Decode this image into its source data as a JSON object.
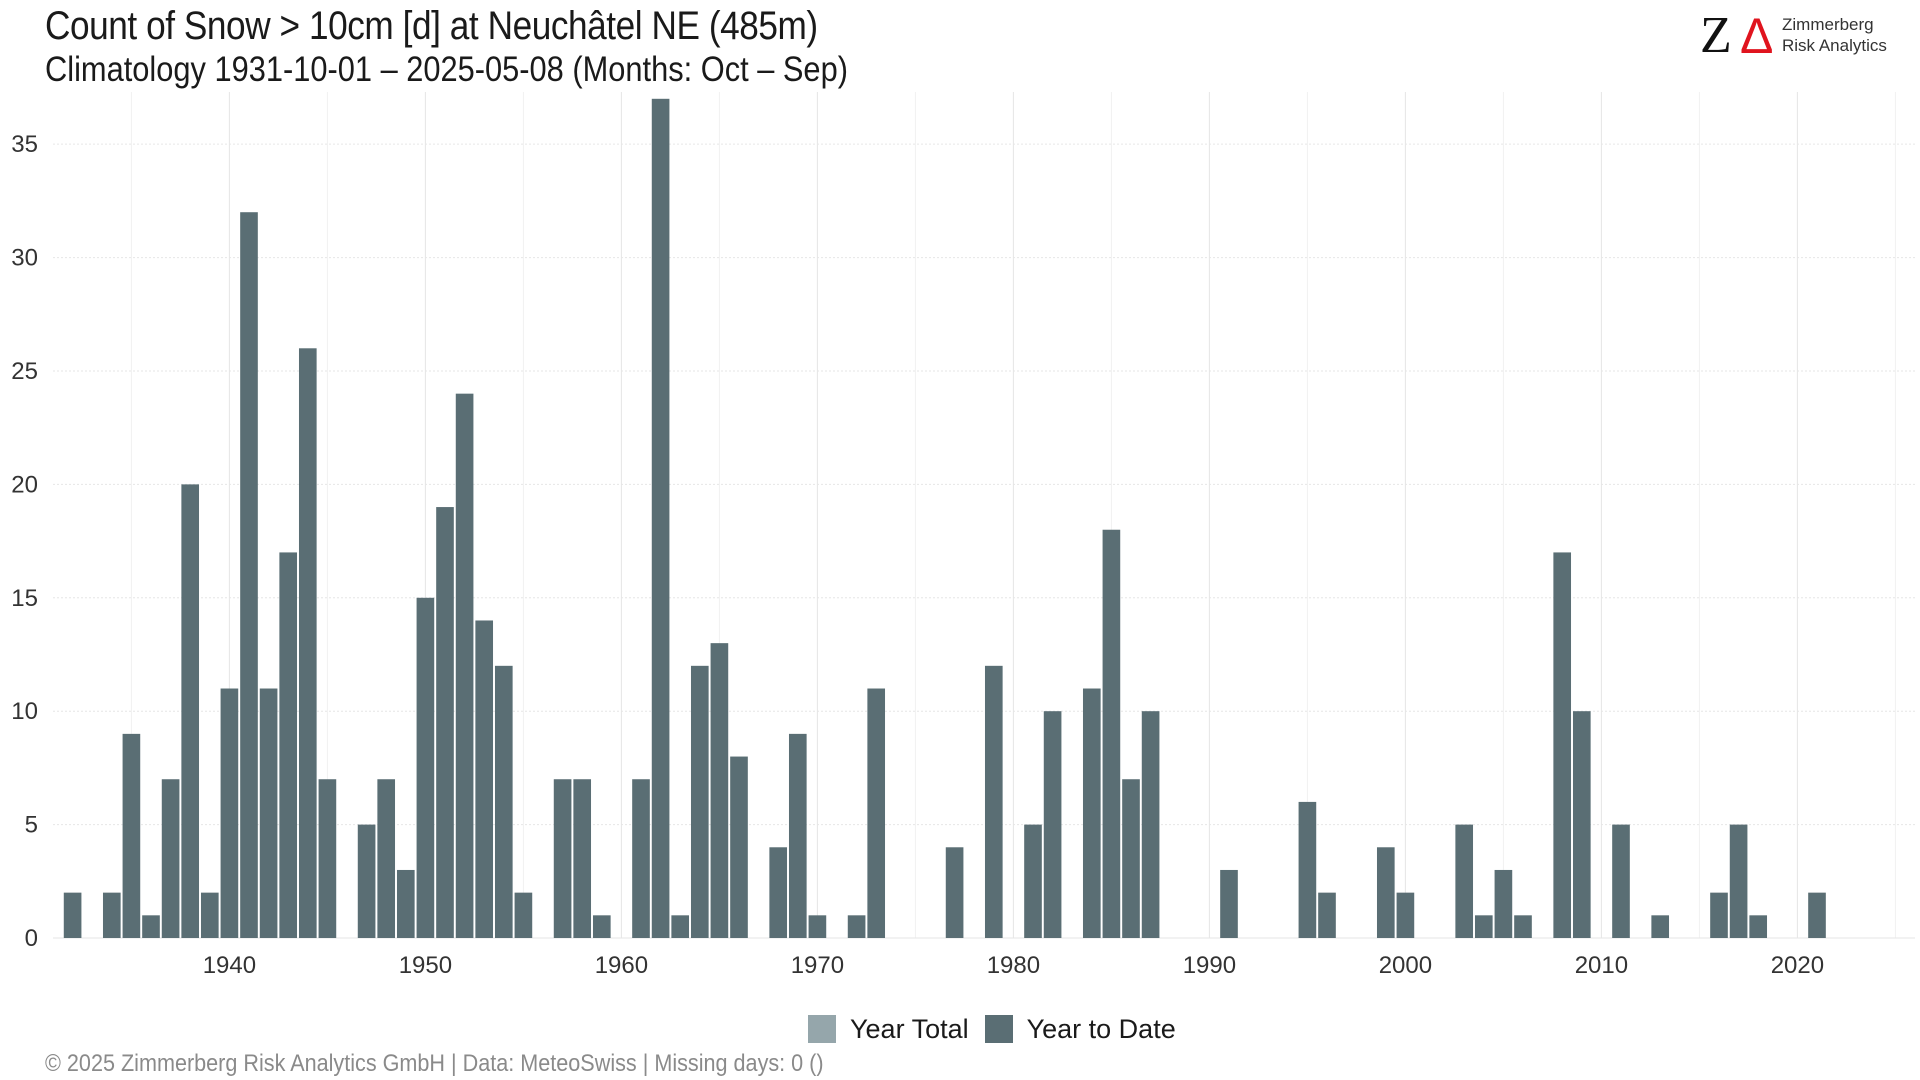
{
  "header": {
    "title": "Count of Snow > 10cm [d] at Neuchâtel  NE (485m)",
    "subtitle": "Climatology 1931-10-01 – 2025-05-08 (Months: Oct – Sep)"
  },
  "logo": {
    "line1": "Zimmerberg",
    "line2": "Risk Analytics",
    "mark_color": "#e0141e"
  },
  "footer": {
    "text": "©  2025 Zimmerberg Risk Analytics GmbH | Data: MeteoSwiss | Missing days: 0 ()"
  },
  "colors": {
    "year_total": "#95a6ab",
    "year_to_date": "#5a6e74",
    "grid": "#e6e6e6"
  },
  "chart_data": {
    "type": "bar",
    "title": "Count of Snow > 10cm [d] at Neuchâtel  NE (485m)",
    "subtitle": "Climatology 1931-10-01 – 2025-05-08 (Months: Oct – Sep)",
    "xlabel": "",
    "ylabel": "",
    "xlim": [
      1931,
      2026
    ],
    "ylim": [
      0,
      37
    ],
    "x_ticks": [
      1940,
      1950,
      1960,
      1970,
      1980,
      1990,
      2000,
      2010,
      2020
    ],
    "y_ticks": [
      0,
      5,
      10,
      15,
      20,
      25,
      30,
      35
    ],
    "grid": true,
    "legend_position": "bottom",
    "legend": [
      "Year Total",
      "Year to Date"
    ],
    "series": [
      {
        "name": "Year to Date",
        "color": "#5a6e74",
        "x": [
          1932,
          1934,
          1935,
          1936,
          1937,
          1938,
          1939,
          1940,
          1941,
          1942,
          1943,
          1944,
          1945,
          1947,
          1948,
          1949,
          1950,
          1951,
          1952,
          1953,
          1954,
          1955,
          1957,
          1958,
          1959,
          1961,
          1962,
          1963,
          1964,
          1965,
          1966,
          1968,
          1969,
          1970,
          1972,
          1973,
          1977,
          1979,
          1981,
          1982,
          1984,
          1985,
          1986,
          1987,
          1991,
          1995,
          1996,
          1999,
          2000,
          2003,
          2004,
          2005,
          2006,
          2008,
          2009,
          2011,
          2013,
          2016,
          2017,
          2018,
          2021,
          2025
        ],
        "values": [
          2,
          2,
          9,
          1,
          7,
          20,
          2,
          11,
          32,
          11,
          17,
          26,
          7,
          5,
          7,
          3,
          15,
          19,
          24,
          14,
          12,
          2,
          7,
          7,
          1,
          7,
          37,
          1,
          12,
          13,
          8,
          4,
          9,
          1,
          1,
          11,
          4,
          12,
          5,
          10,
          11,
          18,
          7,
          10,
          3,
          6,
          2,
          4,
          2,
          5,
          1,
          3,
          1,
          17,
          10,
          5,
          1,
          2,
          5,
          1,
          2,
          0
        ]
      }
    ]
  }
}
